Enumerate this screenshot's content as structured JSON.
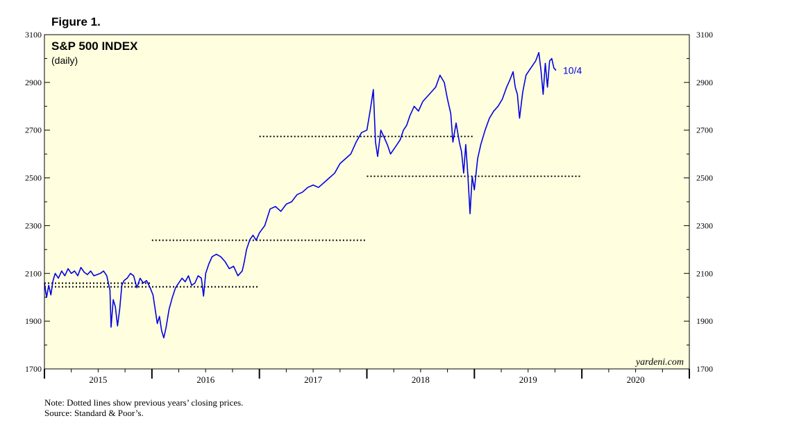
{
  "figure_label": "Figure 1.",
  "notes": {
    "note": "Note: Dotted lines show previous years’ closing prices.",
    "source": "Source: Standard & Poor’s."
  },
  "chart_data": {
    "type": "line",
    "title": "S&P 500 INDEX",
    "subtitle": "(daily)",
    "watermark": "yardeni.com",
    "end_label": "10/4",
    "xlim": [
      2015,
      2021
    ],
    "ylim": [
      1700,
      3100
    ],
    "y_ticks": [
      1700,
      1900,
      2100,
      2300,
      2500,
      2700,
      2900,
      3100
    ],
    "x_tick_labels": [
      "2015",
      "2016",
      "2017",
      "2018",
      "2019",
      "2020"
    ],
    "grid": false,
    "plot_background": "#ffffe0",
    "line_color": "#0000e0",
    "series": [
      {
        "x": [
          2015.0,
          2015.02,
          2015.04,
          2015.06,
          2015.08,
          2015.1,
          2015.13,
          2015.16,
          2015.19,
          2015.22,
          2015.25,
          2015.28,
          2015.31,
          2015.34,
          2015.37,
          2015.4,
          2015.43,
          2015.46,
          2015.49,
          2015.52,
          2015.55,
          2015.58,
          2015.61,
          2015.62,
          2015.64,
          2015.66,
          2015.68,
          2015.7,
          2015.72,
          2015.74,
          2015.77,
          2015.8,
          2015.83,
          2015.86,
          2015.89,
          2015.92,
          2015.95,
          2015.98,
          2016.01,
          2016.03,
          2016.05,
          2016.07,
          2016.09,
          2016.11,
          2016.13,
          2016.16,
          2016.19,
          2016.22,
          2016.25,
          2016.28,
          2016.31,
          2016.34,
          2016.37,
          2016.4,
          2016.43,
          2016.46,
          2016.48,
          2016.5,
          2016.53,
          2016.56,
          2016.6,
          2016.64,
          2016.68,
          2016.72,
          2016.76,
          2016.8,
          2016.84,
          2016.86,
          2016.88,
          2016.91,
          2016.94,
          2016.97,
          2017.0,
          2017.05,
          2017.1,
          2017.15,
          2017.2,
          2017.25,
          2017.3,
          2017.35,
          2017.4,
          2017.45,
          2017.5,
          2017.55,
          2017.6,
          2017.65,
          2017.7,
          2017.75,
          2017.8,
          2017.85,
          2017.9,
          2017.95,
          2018.0,
          2018.03,
          2018.06,
          2018.08,
          2018.1,
          2018.13,
          2018.16,
          2018.19,
          2018.22,
          2018.25,
          2018.28,
          2018.31,
          2018.34,
          2018.37,
          2018.4,
          2018.44,
          2018.48,
          2018.52,
          2018.56,
          2018.6,
          2018.64,
          2018.68,
          2018.72,
          2018.75,
          2018.78,
          2018.8,
          2018.83,
          2018.86,
          2018.88,
          2018.9,
          2018.92,
          2018.94,
          2018.96,
          2018.98,
          2019.0,
          2019.03,
          2019.06,
          2019.1,
          2019.14,
          2019.18,
          2019.22,
          2019.26,
          2019.3,
          2019.33,
          2019.36,
          2019.38,
          2019.4,
          2019.42,
          2019.45,
          2019.48,
          2019.51,
          2019.54,
          2019.57,
          2019.6,
          2019.62,
          2019.64,
          2019.66,
          2019.68,
          2019.7,
          2019.72,
          2019.74,
          2019.76
        ],
        "values": [
          2058,
          2000,
          2050,
          2010,
          2070,
          2100,
          2080,
          2110,
          2090,
          2120,
          2100,
          2110,
          2090,
          2125,
          2105,
          2095,
          2110,
          2090,
          2095,
          2100,
          2110,
          2090,
          2030,
          1875,
          1990,
          1960,
          1880,
          1950,
          2050,
          2070,
          2080,
          2100,
          2090,
          2040,
          2080,
          2060,
          2070,
          2044,
          2010,
          1950,
          1890,
          1920,
          1860,
          1830,
          1870,
          1950,
          2000,
          2040,
          2060,
          2080,
          2065,
          2090,
          2050,
          2060,
          2090,
          2080,
          2005,
          2100,
          2140,
          2170,
          2180,
          2170,
          2150,
          2120,
          2130,
          2090,
          2110,
          2150,
          2200,
          2240,
          2260,
          2239,
          2270,
          2300,
          2370,
          2380,
          2360,
          2390,
          2400,
          2430,
          2440,
          2460,
          2470,
          2460,
          2480,
          2500,
          2520,
          2560,
          2580,
          2600,
          2650,
          2690,
          2700,
          2780,
          2870,
          2650,
          2590,
          2700,
          2670,
          2640,
          2600,
          2620,
          2640,
          2660,
          2700,
          2720,
          2760,
          2800,
          2780,
          2820,
          2840,
          2860,
          2880,
          2930,
          2900,
          2830,
          2770,
          2650,
          2730,
          2650,
          2610,
          2520,
          2640,
          2510,
          2350,
          2506,
          2450,
          2580,
          2640,
          2700,
          2750,
          2780,
          2800,
          2830,
          2880,
          2910,
          2945,
          2880,
          2850,
          2750,
          2860,
          2930,
          2950,
          2970,
          2990,
          3025,
          2950,
          2850,
          2980,
          2880,
          2990,
          3000,
          2960,
          2950
        ]
      }
    ],
    "reference_lines": [
      {
        "x": [
          2015.0,
          2016.0
        ],
        "value": 2058.9
      },
      {
        "x": [
          2015.0,
          2017.0
        ],
        "value": 2043.94
      },
      {
        "x": [
          2016.0,
          2018.0
        ],
        "value": 2238.83
      },
      {
        "x": [
          2017.0,
          2019.0
        ],
        "value": 2673.61
      },
      {
        "x": [
          2018.0,
          2020.0
        ],
        "value": 2506.85
      }
    ]
  }
}
